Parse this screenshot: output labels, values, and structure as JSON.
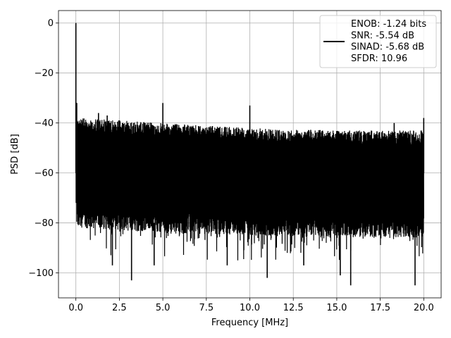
{
  "chart_data": {
    "type": "line",
    "xlabel": "Frequency [MHz]",
    "ylabel": "PSD [dB]",
    "xlim": [
      -1.0,
      21.0
    ],
    "ylim": [
      -110,
      5
    ],
    "x_ticks": [
      0.0,
      2.5,
      5.0,
      7.5,
      10.0,
      12.5,
      15.0,
      17.5,
      20.0
    ],
    "x_tick_labels": [
      "0.0",
      "2.5",
      "5.0",
      "7.5",
      "10.0",
      "12.5",
      "15.0",
      "17.5",
      "20.0"
    ],
    "y_ticks": [
      0,
      -20,
      -40,
      -60,
      -80,
      -100
    ],
    "y_tick_labels": [
      "0",
      "−20",
      "−40",
      "−60",
      "−80",
      "−100"
    ],
    "grid": true,
    "legend_position": "top-right",
    "legend_lines": [
      "ENOB: -1.24 bits",
      "SNR: -5.54 dB",
      "SINAD: -5.68 dB",
      "SFDR: 10.96"
    ],
    "series_color": "#000000",
    "x_range": [
      0.0,
      20.0
    ],
    "spikes": [
      {
        "x": 0.0,
        "y": 0
      },
      {
        "x": 0.05,
        "y": -32
      },
      {
        "x": 1.3,
        "y": -36
      },
      {
        "x": 1.8,
        "y": -37
      },
      {
        "x": 5.0,
        "y": -32
      },
      {
        "x": 10.0,
        "y": -33
      },
      {
        "x": 18.3,
        "y": -40
      },
      {
        "x": 20.0,
        "y": -38
      }
    ],
    "dips": [
      {
        "x": 3.2,
        "y": -103
      },
      {
        "x": 11.0,
        "y": -102
      },
      {
        "x": 15.8,
        "y": -105
      },
      {
        "x": 19.5,
        "y": -105
      },
      {
        "x": 2.1,
        "y": -97
      },
      {
        "x": 4.5,
        "y": -97
      },
      {
        "x": 13.1,
        "y": -97
      },
      {
        "x": 15.2,
        "y": -101
      },
      {
        "x": 8.7,
        "y": -97
      }
    ],
    "envelope_top": [
      {
        "x": 0.2,
        "y": -38
      },
      {
        "x": 5.0,
        "y": -40
      },
      {
        "x": 10.0,
        "y": -42
      },
      {
        "x": 15.0,
        "y": -43
      },
      {
        "x": 20.0,
        "y": -43
      }
    ],
    "envelope_bottom": [
      {
        "x": 0.2,
        "y": -78
      },
      {
        "x": 5.0,
        "y": -80
      },
      {
        "x": 10.0,
        "y": -81
      },
      {
        "x": 15.0,
        "y": -82
      },
      {
        "x": 20.0,
        "y": -82
      }
    ]
  }
}
